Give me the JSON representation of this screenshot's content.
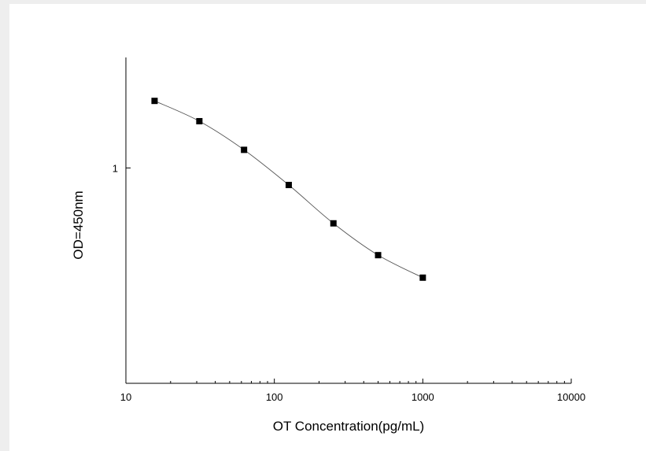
{
  "chart_data": {
    "type": "scatter",
    "title": "",
    "xlabel": "OT Concentration(pg/mL)",
    "ylabel": "OD=450nm",
    "xscale": "log",
    "yscale": "log",
    "xlim": [
      10,
      10000
    ],
    "ylim": [
      0.4,
      1.6
    ],
    "x_ticks": [
      {
        "value": 10,
        "label": "10"
      },
      {
        "value": 100,
        "label": "100"
      },
      {
        "value": 1000,
        "label": "1000"
      },
      {
        "value": 10000,
        "label": "10000"
      }
    ],
    "y_ticks": [
      {
        "value": 1,
        "label": "1"
      }
    ],
    "grid": false,
    "legend": "none",
    "series": [
      {
        "x": [
          15.6,
          31.25,
          62.5,
          125,
          250,
          500,
          1000
        ],
        "y": [
          1.33,
          1.22,
          1.08,
          0.93,
          0.79,
          0.69,
          0.627
        ],
        "marker": "square",
        "connect": "smooth"
      }
    ],
    "colors": {
      "marker": "#000000",
      "line": "#555555",
      "axis": "#000000"
    }
  }
}
